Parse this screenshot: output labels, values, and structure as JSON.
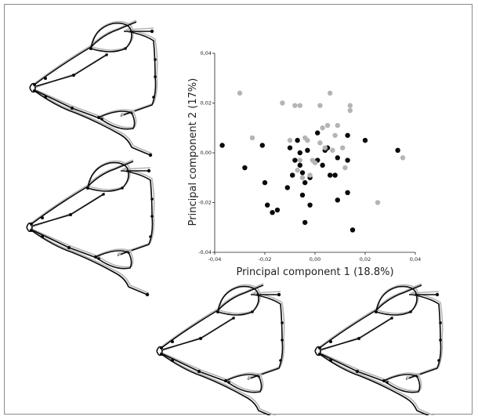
{
  "colors": {
    "group_a": "#0a0a0a",
    "group_b": "#b4b4b4",
    "axis": "#222222",
    "frame": "#8a8a8a"
  },
  "outline_figures": [
    {
      "name": "shape-top-left"
    },
    {
      "name": "shape-mid-left"
    },
    {
      "name": "shape-bottom-center"
    },
    {
      "name": "shape-bottom-right"
    }
  ],
  "chart_data": {
    "type": "scatter",
    "xlabel": "Principal component 1 (18.8%)",
    "ylabel": "Principal component 2 (17%)",
    "xlim": [
      -0.04,
      0.04
    ],
    "ylim": [
      -0.04,
      0.04
    ],
    "x_ticks": [
      -0.04,
      -0.02,
      0.0,
      0.02,
      0.04
    ],
    "y_ticks": [
      -0.04,
      -0.02,
      0.0,
      0.02,
      0.04
    ],
    "x_tick_labels": [
      "-0,04",
      "-0,02",
      "0,00",
      "0,02",
      "0,04"
    ],
    "y_tick_labels": [
      "-0,04",
      "-0,02",
      "0,00",
      "0,02",
      "0,04"
    ],
    "grid": false,
    "series": [
      {
        "color": "#0a0a0a",
        "x": [
          -0.037,
          -0.028,
          -0.02,
          -0.017,
          -0.01,
          -0.008,
          -0.019,
          -0.015,
          -0.021,
          -0.007,
          -0.006,
          -0.005,
          -0.009,
          -0.003,
          0.001,
          0.004,
          0.009,
          0.013,
          0.02,
          0.033,
          0.013,
          0.005,
          0.003,
          -0.002,
          -0.004,
          0.006,
          0.008,
          -0.005,
          0.009,
          0.013,
          -0.002,
          -0.004,
          -0.011,
          0.015,
          0.001,
          -0.006
        ],
        "y": [
          0.003,
          -0.006,
          -0.012,
          -0.024,
          0.002,
          -0.003,
          -0.021,
          -0.023,
          0.003,
          0.005,
          -0.005,
          -0.008,
          -0.009,
          0.001,
          0.008,
          0.001,
          -0.002,
          0.007,
          0.005,
          0.001,
          -0.003,
          0.002,
          -0.005,
          -0.01,
          -0.012,
          -0.009,
          -0.009,
          -0.017,
          -0.019,
          -0.016,
          -0.021,
          -0.028,
          -0.014,
          -0.031,
          -0.003,
          0.0
        ]
      },
      {
        "color": "#b4b4b4",
        "x": [
          -0.03,
          -0.025,
          -0.013,
          -0.008,
          -0.006,
          0.002,
          0.006,
          0.014,
          0.014,
          0.009,
          0.008,
          0.005,
          0.003,
          -0.004,
          -0.003,
          -0.01,
          0.002,
          0.004,
          0.007,
          -0.006,
          0.0,
          -0.001,
          0.011,
          0.012,
          -0.002,
          0.025,
          0.035,
          -0.005,
          -0.007
        ],
        "y": [
          0.024,
          0.006,
          0.02,
          0.019,
          0.019,
          0.019,
          0.024,
          0.019,
          0.017,
          0.011,
          0.007,
          0.011,
          0.01,
          0.006,
          0.005,
          0.005,
          0.004,
          0.002,
          0.001,
          -0.003,
          -0.004,
          -0.003,
          0.002,
          -0.006,
          -0.009,
          -0.02,
          -0.002,
          -0.01,
          -0.007
        ]
      }
    ]
  }
}
